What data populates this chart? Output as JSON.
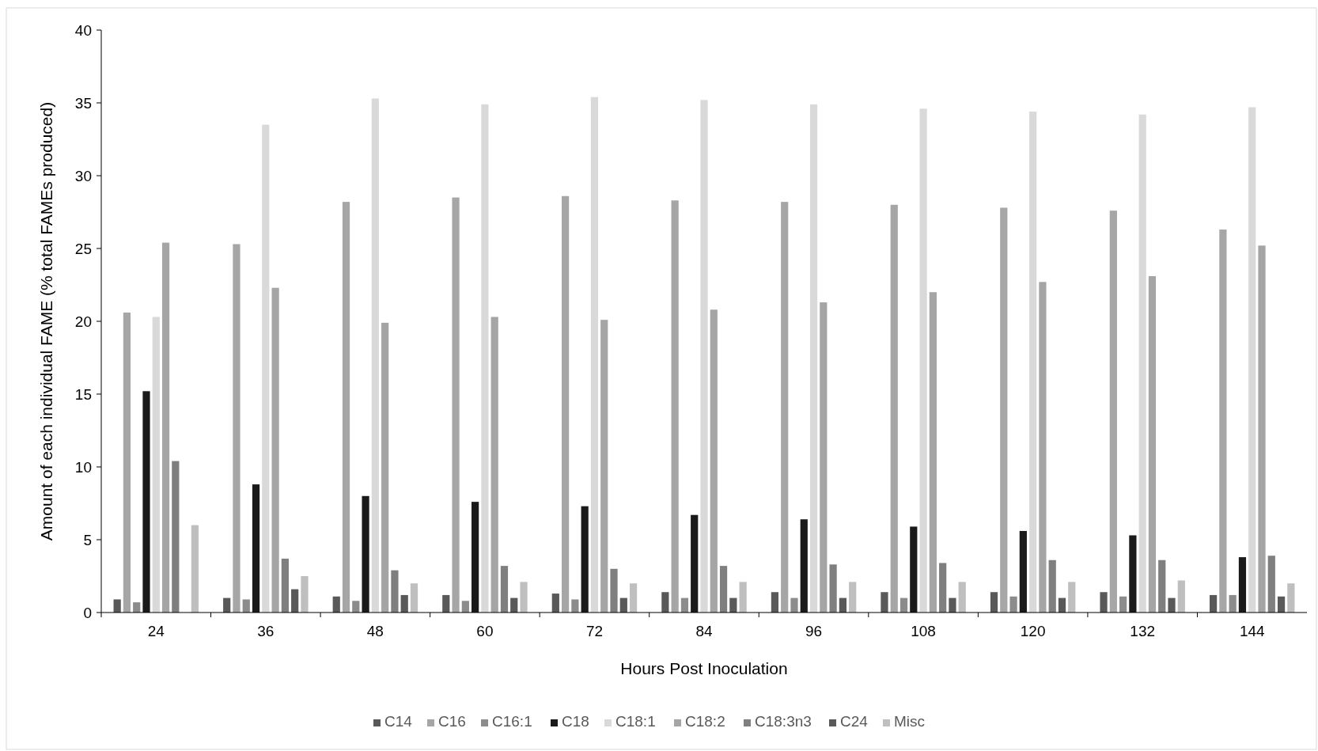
{
  "chart_data": {
    "type": "bar",
    "xlabel": "Hours Post Inoculation",
    "ylabel": "Amount of each individual FAME (% total FAMEs produced)",
    "categories": [
      "24",
      "36",
      "48",
      "60",
      "72",
      "84",
      "96",
      "108",
      "120",
      "132",
      "144"
    ],
    "series": [
      {
        "name": "C14",
        "color": "#595959",
        "values": [
          0.9,
          1.0,
          1.1,
          1.2,
          1.3,
          1.4,
          1.4,
          1.4,
          1.4,
          1.4,
          1.2
        ]
      },
      {
        "name": "C16",
        "color": "#a6a6a6",
        "values": [
          20.6,
          25.3,
          28.2,
          28.5,
          28.6,
          28.3,
          28.2,
          28.0,
          27.8,
          27.6,
          26.3
        ]
      },
      {
        "name": "C16:1",
        "color": "#8c8c8c",
        "values": [
          0.7,
          0.9,
          0.8,
          0.8,
          0.9,
          1.0,
          1.0,
          1.0,
          1.1,
          1.1,
          1.2
        ]
      },
      {
        "name": "C18",
        "color": "#1a1a1a",
        "values": [
          15.2,
          8.8,
          8.0,
          7.6,
          7.3,
          6.7,
          6.4,
          5.9,
          5.6,
          5.3,
          3.8
        ]
      },
      {
        "name": "C18:1",
        "color": "#d9d9d9",
        "values": [
          20.3,
          33.5,
          35.3,
          34.9,
          35.4,
          35.2,
          34.9,
          34.6,
          34.4,
          34.2,
          34.7
        ]
      },
      {
        "name": "C18:2",
        "color": "#a5a5a5",
        "values": [
          25.4,
          22.3,
          19.9,
          20.3,
          20.1,
          20.8,
          21.3,
          22.0,
          22.7,
          23.1,
          25.2
        ]
      },
      {
        "name": "C18:3n3",
        "color": "#7f7f7f",
        "values": [
          10.4,
          3.7,
          2.9,
          3.2,
          3.0,
          3.2,
          3.3,
          3.4,
          3.6,
          3.6,
          3.9
        ]
      },
      {
        "name": "C24",
        "color": "#595959",
        "values": [
          null,
          1.6,
          1.2,
          1.0,
          1.0,
          1.0,
          1.0,
          1.0,
          1.0,
          1.0,
          1.1
        ]
      },
      {
        "name": "Misc",
        "color": "#bfbfbf",
        "values": [
          6.0,
          2.5,
          2.0,
          2.1,
          2.0,
          2.1,
          2.1,
          2.1,
          2.1,
          2.2,
          2.0
        ]
      }
    ],
    "ylim": [
      0,
      40
    ],
    "yticks": [
      0,
      5,
      10,
      15,
      20,
      25,
      30,
      35,
      40
    ],
    "grid": false,
    "legend": "bottom"
  }
}
